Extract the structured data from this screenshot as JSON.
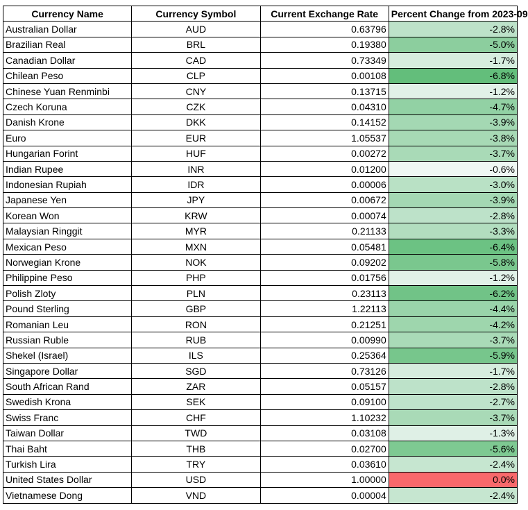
{
  "table": {
    "header": [
      "Currency Name",
      "Currency Symbol",
      "Current Exchange Rate",
      "Percent Change from 2023-09"
    ],
    "rows": [
      [
        "Australian Dollar",
        "AUD",
        "0.63796",
        "-2.8%"
      ],
      [
        "Brazilian Real",
        "BRL",
        "0.19380",
        "-5.0%"
      ],
      [
        "Canadian Dollar",
        "CAD",
        "0.73349",
        "-1.7%"
      ],
      [
        "Chilean Peso",
        "CLP",
        "0.00108",
        "-6.8%"
      ],
      [
        "Chinese Yuan Renminbi",
        "CNY",
        "0.13715",
        "-1.2%"
      ],
      [
        "Czech Koruna",
        "CZK",
        "0.04310",
        "-4.7%"
      ],
      [
        "Danish Krone",
        "DKK",
        "0.14152",
        "-3.9%"
      ],
      [
        "Euro",
        "EUR",
        "1.05537",
        "-3.8%"
      ],
      [
        "Hungarian Forint",
        "HUF",
        "0.00272",
        "-3.7%"
      ],
      [
        "Indian Rupee",
        "INR",
        "0.01200",
        "-0.6%"
      ],
      [
        "Indonesian Rupiah",
        "IDR",
        "0.00006",
        "-3.0%"
      ],
      [
        "Japanese Yen",
        "JPY",
        "0.00672",
        "-3.9%"
      ],
      [
        "Korean Won",
        "KRW",
        "0.00074",
        "-2.8%"
      ],
      [
        "Malaysian Ringgit",
        "MYR",
        "0.21133",
        "-3.3%"
      ],
      [
        "Mexican Peso",
        "MXN",
        "0.05481",
        "-6.4%"
      ],
      [
        "Norwegian Krone",
        "NOK",
        "0.09202",
        "-5.8%"
      ],
      [
        "Philippine Peso",
        "PHP",
        "0.01756",
        "-1.2%"
      ],
      [
        "Polish Zloty",
        "PLN",
        "0.23113",
        "-6.2%"
      ],
      [
        "Pound Sterling",
        "GBP",
        "1.22113",
        "-4.4%"
      ],
      [
        "Romanian Leu",
        "RON",
        "0.21251",
        "-4.2%"
      ],
      [
        "Russian Ruble",
        "RUB",
        "0.00990",
        "-3.7%"
      ],
      [
        "Shekel (Israel)",
        "ILS",
        "0.25364",
        "-5.9%"
      ],
      [
        "Singapore Dollar",
        "SGD",
        "0.73126",
        "-1.7%"
      ],
      [
        "South African Rand",
        "ZAR",
        "0.05157",
        "-2.8%"
      ],
      [
        "Swedish Krona",
        "SEK",
        "0.09100",
        "-2.7%"
      ],
      [
        "Swiss Franc",
        "CHF",
        "1.10232",
        "-3.7%"
      ],
      [
        "Taiwan Dollar",
        "TWD",
        "0.03108",
        "-1.3%"
      ],
      [
        "Thai Baht",
        "THB",
        "0.02700",
        "-5.6%"
      ],
      [
        "Turkish Lira",
        "TRY",
        "0.03610",
        "-2.4%"
      ],
      [
        "United States Dollar",
        "USD",
        "1.00000",
        "0.0%"
      ],
      [
        "Vietnamese Dong",
        "VND",
        "0.00004",
        "-2.4%"
      ]
    ]
  }
}
